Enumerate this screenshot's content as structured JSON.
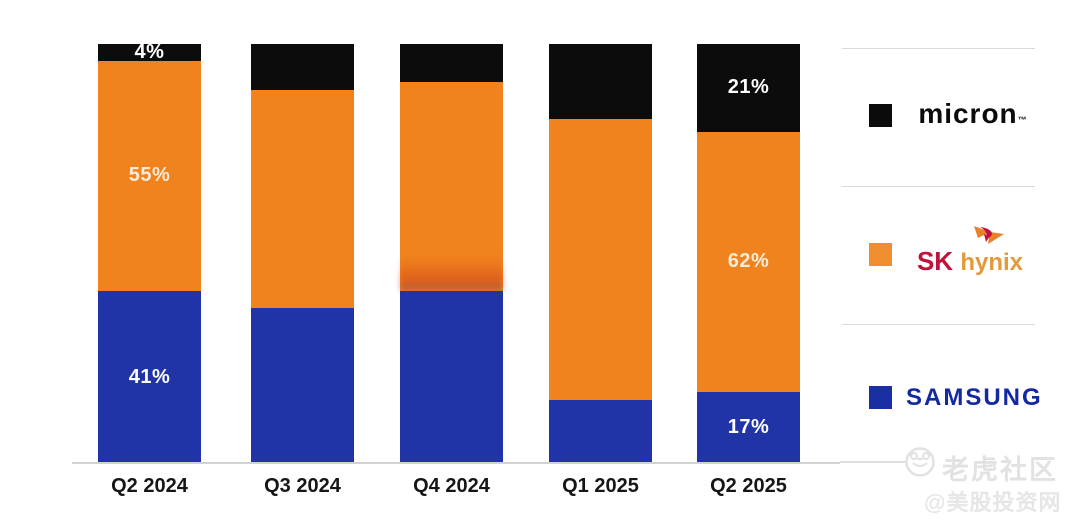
{
  "chart_data": {
    "type": "bar",
    "subtype": "stacked-100-percent",
    "categories": [
      "Q2 2024",
      "Q3 2024",
      "Q4 2024",
      "Q1 2025",
      "Q2 2025"
    ],
    "series": [
      {
        "name": "Micron",
        "color": "#0c0c0c",
        "label_color": "#ffffff",
        "values": [
          4,
          11,
          9,
          18,
          21
        ],
        "data_labels": [
          "4%",
          "",
          "",
          "",
          "21%"
        ]
      },
      {
        "name": "SK hynix",
        "color": "#f1831f",
        "label_color": "#f7ecd9",
        "values": [
          55,
          52,
          50,
          67,
          62
        ],
        "data_labels": [
          "55%",
          "",
          "",
          "",
          "62%"
        ]
      },
      {
        "name": "Samsung",
        "color": "#2134a7",
        "label_color": "#ffffff",
        "values": [
          41,
          37,
          41,
          15,
          17
        ],
        "data_labels": [
          "41%",
          "",
          "",
          "",
          "17%"
        ]
      }
    ],
    "stack_order_top_to_bottom": [
      "Micron",
      "SK hynix",
      "Samsung"
    ],
    "ylim": [
      0,
      100
    ],
    "grid": false,
    "legend_position": "right",
    "title": "",
    "xlabel": "",
    "ylabel": ""
  },
  "legend": {
    "entries": [
      {
        "name": "micron",
        "swatch_color": "#0b0b0b",
        "logo_text": "micron",
        "tm": "™"
      },
      {
        "name": "sk-hynix",
        "swatch_color": "#ef8d2f",
        "logo_text_1": "SK",
        "logo_text_2": "hynix"
      },
      {
        "name": "samsung",
        "swatch_color": "#1b2fa5",
        "logo_text": "SAMSUNG"
      }
    ]
  },
  "watermark": {
    "community": "老虎社区",
    "handle": "@美股投资网",
    "icon": "tiger-badge",
    "color": "#e2e2e2"
  }
}
